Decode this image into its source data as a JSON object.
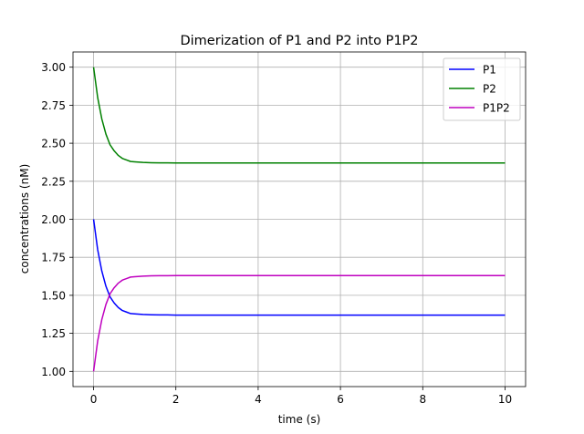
{
  "chart_data": {
    "type": "line",
    "title": "Dimerization of P1 and P2 into P1P2",
    "xlabel": "time (s)",
    "ylabel": "concentrations (nM)",
    "xlim": [
      -0.5,
      10.5
    ],
    "ylim": [
      0.9,
      3.1
    ],
    "xticks": [
      0,
      2,
      4,
      6,
      8,
      10
    ],
    "xtick_labels": [
      "0",
      "2",
      "4",
      "6",
      "8",
      "10"
    ],
    "yticks": [
      1.0,
      1.25,
      1.5,
      1.75,
      2.0,
      2.25,
      2.5,
      2.75,
      3.0
    ],
    "ytick_labels": [
      "1.00",
      "1.25",
      "1.50",
      "1.75",
      "2.00",
      "2.25",
      "2.50",
      "2.75",
      "3.00"
    ],
    "grid": true,
    "legend_position": "top-right",
    "x": [
      0,
      0.1,
      0.2,
      0.3,
      0.4,
      0.5,
      0.6,
      0.7,
      0.8,
      0.9,
      1.0,
      1.2,
      1.4,
      1.6,
      1.8,
      2.0,
      3,
      4,
      5,
      6,
      7,
      8,
      9,
      10
    ],
    "series": [
      {
        "name": "P1",
        "color": "#0000ff",
        "values": [
          2.0,
          1.8,
          1.66,
          1.56,
          1.49,
          1.45,
          1.42,
          1.4,
          1.39,
          1.38,
          1.378,
          1.374,
          1.372,
          1.371,
          1.371,
          1.37,
          1.37,
          1.37,
          1.37,
          1.37,
          1.37,
          1.37,
          1.37,
          1.37
        ]
      },
      {
        "name": "P2",
        "color": "#008000",
        "values": [
          3.0,
          2.8,
          2.66,
          2.56,
          2.49,
          2.45,
          2.42,
          2.4,
          2.39,
          2.38,
          2.378,
          2.374,
          2.372,
          2.371,
          2.371,
          2.37,
          2.37,
          2.37,
          2.37,
          2.37,
          2.37,
          2.37,
          2.37,
          2.37
        ]
      },
      {
        "name": "P1P2",
        "color": "#bf00bf",
        "values": [
          1.0,
          1.2,
          1.34,
          1.44,
          1.51,
          1.55,
          1.58,
          1.6,
          1.61,
          1.62,
          1.622,
          1.626,
          1.628,
          1.629,
          1.629,
          1.63,
          1.63,
          1.63,
          1.63,
          1.63,
          1.63,
          1.63,
          1.63,
          1.63
        ]
      }
    ]
  }
}
